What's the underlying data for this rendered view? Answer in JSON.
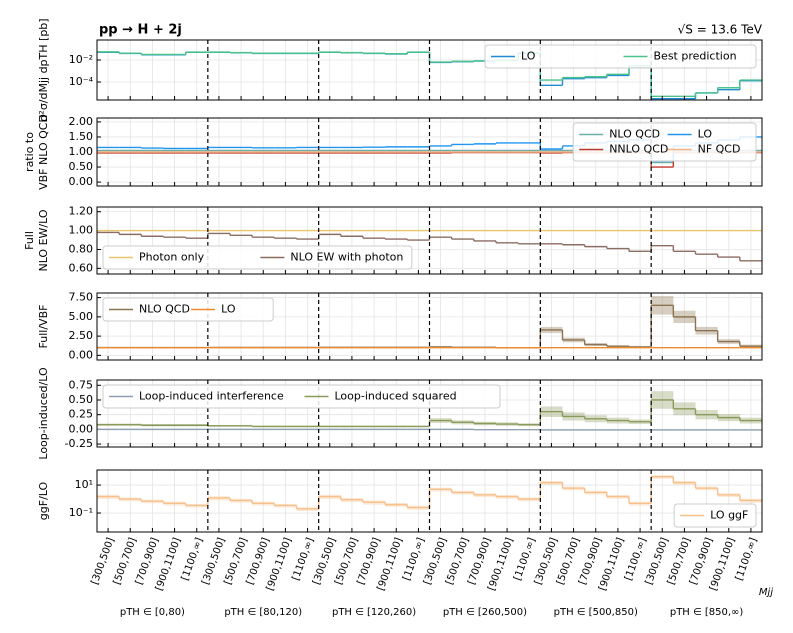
{
  "chart_data": [
    {
      "type": "step",
      "title": "pp → H + 2j",
      "energy": "√S = 13.6 TeV",
      "ylabel": [
        "d²σ/dMjj dpTH [pb]"
      ],
      "log": true,
      "ylim": [
        2.3e-06,
        0.66
      ],
      "yticks": [
        {
          "value": 0.01,
          "label": "10⁻²"
        },
        {
          "value": 0.0001,
          "label": "10⁻⁴"
        }
      ],
      "grid": true,
      "legend": "upper right",
      "legend_columns": 2,
      "series": [
        {
          "name": "LO",
          "color": "#1f8ad6",
          "values": [
            0.05,
            0.04,
            0.03,
            0.03,
            0.05,
            0.05,
            0.045,
            0.04,
            0.04,
            0.04,
            0.05,
            0.045,
            0.04,
            0.035,
            0.05,
            0.006,
            0.007,
            0.008,
            0.009,
            0.04,
            5e-05,
            0.0002,
            0.00025,
            0.0004,
            0.002,
            3e-06,
            3e-06,
            1e-05,
            2e-05,
            0.00013
          ]
        },
        {
          "name": "Best prediction",
          "color": "#4cc38a",
          "values": [
            0.055,
            0.042,
            0.032,
            0.032,
            0.052,
            0.052,
            0.047,
            0.042,
            0.042,
            0.042,
            0.052,
            0.047,
            0.042,
            0.037,
            0.052,
            0.0065,
            0.0075,
            0.0085,
            0.0095,
            0.045,
            0.00015,
            0.00025,
            0.0003,
            0.0005,
            0.003,
            5e-06,
            5e-06,
            1e-05,
            3e-05,
            0.00015
          ]
        }
      ]
    },
    {
      "type": "step",
      "ylabel": [
        "ratio to",
        "VBF NLO QCD"
      ],
      "log": false,
      "ylim": [
        -0.13,
        2.13
      ],
      "yticks": [
        {
          "value": 0,
          "label": "0.00"
        },
        {
          "value": 0.5,
          "label": "0.50"
        },
        {
          "value": 1,
          "label": "1.00"
        },
        {
          "value": 1.5,
          "label": "1.50"
        },
        {
          "value": 2,
          "label": "2.00"
        }
      ],
      "grid": true,
      "legend": "upper right",
      "legend_columns": 2,
      "series": [
        {
          "name": "NLO QCD",
          "color": "#6ab0a8",
          "values": [
            1.05,
            1.05,
            1.05,
            1.05,
            1.05,
            1.05,
            1.05,
            1.05,
            1.05,
            1.05,
            1.05,
            1.05,
            1.05,
            1.05,
            1.05,
            1.05,
            1.05,
            1.05,
            1.05,
            1.05,
            1.05,
            1.05,
            1.05,
            1.05,
            1.05,
            0.65,
            1.05,
            1.05,
            1.05,
            1.05
          ]
        },
        {
          "name": "NNLO QCD",
          "color": "#c0392b",
          "values": [
            0.97,
            0.97,
            0.97,
            0.97,
            0.97,
            0.97,
            0.97,
            0.97,
            0.97,
            0.97,
            0.97,
            0.97,
            0.97,
            0.97,
            0.97,
            0.97,
            0.98,
            0.98,
            0.98,
            0.98,
            0.97,
            0.98,
            0.98,
            0.98,
            0.98,
            0.5,
            0.98,
            0.98,
            0.98,
            0.98
          ]
        },
        {
          "name": "LO",
          "color": "#2196f3",
          "values": [
            1.15,
            1.15,
            1.13,
            1.12,
            1.12,
            1.15,
            1.15,
            1.14,
            1.14,
            1.15,
            1.15,
            1.15,
            1.16,
            1.17,
            1.17,
            1.2,
            1.25,
            1.27,
            1.3,
            1.3,
            1.1,
            1.2,
            1.3,
            1.35,
            1.4,
            0.7,
            1.2,
            1.3,
            1.4,
            1.5
          ]
        },
        {
          "name": "NF QCD",
          "color": "#f4b183",
          "values": [
            1.0,
            1.0,
            1.0,
            1.0,
            1.0,
            1.0,
            1.0,
            1.0,
            1.0,
            1.0,
            1.0,
            1.0,
            1.0,
            1.0,
            1.0,
            1.0,
            1.0,
            1.0,
            1.0,
            1.0,
            1.0,
            1.0,
            1.0,
            1.0,
            1.0,
            1.0,
            1.0,
            1.0,
            1.0,
            1.0
          ]
        }
      ]
    },
    {
      "type": "step",
      "ylabel": [
        "Full",
        "NLO EW/LO"
      ],
      "log": false,
      "ylim": [
        0.54,
        1.25
      ],
      "yticks": [
        {
          "value": 0.6,
          "label": "0.60"
        },
        {
          "value": 0.8,
          "label": "0.80"
        },
        {
          "value": 1,
          "label": "1.00"
        },
        {
          "value": 1.2,
          "label": "1.20"
        }
      ],
      "grid": true,
      "legend": "lower left",
      "legend_columns": 2,
      "series": [
        {
          "name": "Photon only",
          "color": "#e8c66a",
          "values": [
            1.0,
            1.0,
            1.0,
            1.0,
            1.0,
            1.0,
            1.0,
            1.0,
            1.0,
            1.0,
            1.0,
            1.0,
            1.0,
            1.0,
            1.0,
            1.0,
            1.0,
            1.0,
            1.0,
            1.0,
            1.0,
            1.0,
            1.0,
            1.0,
            1.0,
            1.0,
            1.0,
            1.0,
            1.0,
            1.0
          ]
        },
        {
          "name": "NLO EW with photon",
          "color": "#8c6d62",
          "values": [
            0.98,
            0.96,
            0.94,
            0.93,
            0.92,
            0.97,
            0.95,
            0.93,
            0.92,
            0.91,
            0.96,
            0.94,
            0.92,
            0.91,
            0.9,
            0.93,
            0.91,
            0.89,
            0.87,
            0.86,
            0.86,
            0.85,
            0.83,
            0.81,
            0.78,
            0.84,
            0.78,
            0.75,
            0.72,
            0.68
          ]
        }
      ]
    },
    {
      "type": "step",
      "ylabel": [
        "Full/VBF"
      ],
      "log": false,
      "ylim": [
        -0.6,
        8.1
      ],
      "yticks": [
        {
          "value": 0,
          "label": "0.00"
        },
        {
          "value": 2.5,
          "label": "2.50"
        },
        {
          "value": 5,
          "label": "5.00"
        },
        {
          "value": 7.5,
          "label": "7.50"
        }
      ],
      "grid": true,
      "legend": "upper left",
      "legend_columns": 2,
      "series": [
        {
          "name": "NLO QCD",
          "color": "#8c7250",
          "values": [
            1.02,
            1.02,
            1.02,
            1.02,
            1.02,
            1.03,
            1.03,
            1.03,
            1.03,
            1.03,
            1.04,
            1.04,
            1.04,
            1.04,
            1.04,
            1.1,
            1.05,
            1.05,
            1.0,
            1.0,
            3.3,
            2.0,
            1.4,
            1.2,
            1.1,
            6.5,
            5.0,
            3.2,
            1.8,
            1.2
          ],
          "errors": [
            0.05,
            0.05,
            0.05,
            0.05,
            0.05,
            0.05,
            0.05,
            0.05,
            0.05,
            0.05,
            0.05,
            0.05,
            0.05,
            0.05,
            0.05,
            0.1,
            0.08,
            0.08,
            0.06,
            0.06,
            0.4,
            0.3,
            0.2,
            0.1,
            0.1,
            1.2,
            0.8,
            0.5,
            0.3,
            0.2
          ]
        },
        {
          "name": "LO",
          "color": "#ee8a2c",
          "values": [
            1.0,
            1.0,
            1.0,
            1.0,
            1.0,
            1.0,
            1.0,
            1.0,
            1.0,
            1.0,
            1.0,
            1.0,
            1.0,
            1.0,
            1.0,
            1.0,
            1.0,
            1.0,
            1.0,
            1.0,
            1.0,
            1.0,
            1.0,
            1.0,
            1.0,
            1.0,
            1.0,
            1.0,
            1.0,
            1.0
          ]
        }
      ]
    },
    {
      "type": "step",
      "ylabel": [
        "Loop-induced/LO"
      ],
      "log": false,
      "ylim": [
        -0.3,
        0.84
      ],
      "yticks": [
        {
          "value": -0.25,
          "label": "-0.25"
        },
        {
          "value": 0,
          "label": "0.00"
        },
        {
          "value": 0.25,
          "label": "0.25"
        },
        {
          "value": 0.5,
          "label": "0.50"
        },
        {
          "value": 0.75,
          "label": "0.75"
        }
      ],
      "grid": true,
      "legend": "upper left",
      "legend_columns": 2,
      "series": [
        {
          "name": "Loop-induced interference",
          "color": "#8fa0b0",
          "values": [
            0,
            0,
            0,
            0,
            0,
            0,
            0,
            0,
            0,
            0,
            0,
            0,
            0,
            0,
            0,
            0,
            0,
            -0.005,
            -0.005,
            -0.005,
            -0.01,
            -0.01,
            -0.01,
            -0.01,
            -0.01,
            -0.01,
            -0.01,
            -0.01,
            -0.01,
            -0.01
          ]
        },
        {
          "name": "Loop-induced squared",
          "color": "#8a9a5b",
          "values": [
            0.08,
            0.08,
            0.07,
            0.07,
            0.07,
            0.06,
            0.06,
            0.05,
            0.05,
            0.05,
            0.05,
            0.05,
            0.05,
            0.05,
            0.05,
            0.15,
            0.12,
            0.1,
            0.09,
            0.08,
            0.3,
            0.22,
            0.18,
            0.15,
            0.13,
            0.5,
            0.35,
            0.25,
            0.2,
            0.15
          ],
          "errors": [
            0.02,
            0.02,
            0.02,
            0.02,
            0.02,
            0.015,
            0.015,
            0.015,
            0.015,
            0.015,
            0.015,
            0.015,
            0.015,
            0.015,
            0.015,
            0.04,
            0.035,
            0.03,
            0.03,
            0.025,
            0.09,
            0.07,
            0.06,
            0.05,
            0.04,
            0.15,
            0.11,
            0.08,
            0.06,
            0.05
          ]
        }
      ]
    },
    {
      "type": "step",
      "ylabel": [
        "ggF/LO"
      ],
      "log": true,
      "ylim": [
        0.0044,
        120
      ],
      "yticks": [
        {
          "value": 10,
          "label": "10¹"
        },
        {
          "value": 0.1,
          "label": "10⁻¹"
        }
      ],
      "grid": true,
      "legend": "lower right",
      "legend_columns": 1,
      "series": [
        {
          "name": "LO ggF",
          "color": "#f7c08a",
          "values": [
            1.5,
            1.0,
            0.7,
            0.5,
            0.35,
            1.2,
            0.8,
            0.5,
            0.35,
            0.2,
            1.5,
            0.9,
            0.6,
            0.4,
            0.25,
            5,
            3,
            2,
            1.5,
            1.0,
            15,
            6,
            3,
            1.5,
            0.5,
            40,
            15,
            6,
            2,
            0.8
          ],
          "errors": [
            0.5,
            0.3,
            0.2,
            0.15,
            0.1,
            0.4,
            0.25,
            0.15,
            0.1,
            0.06,
            0.5,
            0.3,
            0.2,
            0.12,
            0.08,
            1.5,
            0.9,
            0.6,
            0.45,
            0.3,
            4.5,
            1.8,
            0.9,
            0.45,
            0.15,
            12,
            4.5,
            1.8,
            0.6,
            0.25
          ]
        }
      ],
      "categories": [
        "[300,500]",
        "[500,700]",
        "[700,900]",
        "[900,1100]",
        "[1100,∞]",
        "[300,500]",
        "[500,700]",
        "[700,900]",
        "[900,1100]",
        "[1100,∞]",
        "[300,500]",
        "[500,700]",
        "[700,900]",
        "[900,1100]",
        "[1100,∞]",
        "[300,500]",
        "[500,700]",
        "[700,900]",
        "[900,1100]",
        "[1100,∞]",
        "[300,500]",
        "[500,700]",
        "[700,900]",
        "[900,1100]",
        "[1100,∞]",
        "[300,500]",
        "[500,700]",
        "[700,900]",
        "[900,1100]",
        "[1100,∞]"
      ],
      "groups": [
        "pTH ∈ [0,80)",
        "pTH ∈ [80,120)",
        "pTH ∈ [120,260)",
        "pTH ∈ [260,500)",
        "pTH ∈ [500,850)",
        "pTH ∈ [850,∞)"
      ],
      "xlabel": "Mjj"
    }
  ]
}
